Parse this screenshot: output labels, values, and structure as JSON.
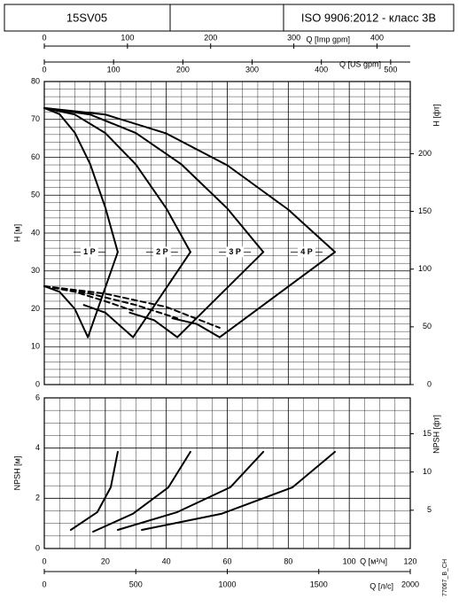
{
  "header": {
    "model": "15SV05",
    "standard": "ISO 9906:2012 - класс 3B"
  },
  "code": "77067_B_CH",
  "chart_data": [
    {
      "type": "line",
      "ylabel": "H [м]",
      "y2label": "H [фт]",
      "xlim": [
        0,
        120
      ],
      "xticks": [
        0,
        20,
        40,
        60,
        80,
        100,
        120
      ],
      "ylim": [
        0,
        80
      ],
      "yticks": [
        0,
        10,
        20,
        30,
        40,
        50,
        60,
        70,
        80
      ],
      "y2lim": [
        0,
        262.5
      ],
      "y2ticks": [
        0,
        50,
        100,
        150,
        200
      ],
      "top_axes": [
        {
          "label": "Q [Imp gpm]",
          "lim": [
            0,
            440
          ],
          "ticks": [
            0,
            100,
            200,
            300,
            400
          ]
        },
        {
          "label": "Q [US gpm]",
          "lim": [
            0,
            528.3
          ],
          "ticks": [
            0,
            100,
            200,
            300,
            400,
            500
          ]
        }
      ],
      "grid": true,
      "color": "#000000",
      "stage_labels": [
        "1 P",
        "2 P",
        "3 P",
        "4 P"
      ],
      "curves": [
        {
          "x": [
            0,
            5,
            10,
            15,
            20,
            24.1
          ],
          "values": [
            73,
            71.4,
            66.5,
            58.3,
            46.8,
            35
          ]
        },
        {
          "x": [
            0,
            10,
            20,
            30,
            40,
            47.9
          ],
          "values": [
            73,
            71.3,
            66.4,
            58.1,
            46.5,
            35
          ]
        },
        {
          "x": [
            0,
            15,
            30,
            45,
            60,
            71.8
          ],
          "values": [
            73,
            71.3,
            66.4,
            58.1,
            46.5,
            35
          ]
        },
        {
          "x": [
            0,
            20,
            40,
            60,
            80,
            95.3
          ],
          "values": [
            73,
            71.3,
            66.3,
            57.9,
            46.2,
            35
          ]
        },
        {
          "x": [
            24.1,
            14.3
          ],
          "values": [
            35,
            12.5
          ]
        },
        {
          "x": [
            47.9,
            29.1
          ],
          "values": [
            35,
            12.5
          ]
        },
        {
          "x": [
            71.8,
            43.6
          ],
          "values": [
            35,
            12.5
          ]
        },
        {
          "x": [
            95.3,
            57.5
          ],
          "values": [
            35,
            12.5
          ]
        },
        {
          "x": [
            0,
            5,
            10,
            14.3
          ],
          "values": [
            26,
            24.5,
            20,
            12.5
          ]
        },
        {
          "x": [
            13,
            20,
            29.1
          ],
          "values": [
            21,
            19,
            12.5
          ]
        },
        {
          "x": [
            28,
            36,
            43.6
          ],
          "values": [
            19,
            17,
            12.5
          ]
        },
        {
          "x": [
            42,
            50,
            57.5
          ],
          "values": [
            17.5,
            16,
            12.5
          ]
        },
        {
          "x": [
            0,
            10,
            20,
            29
          ],
          "values": [
            26,
            24.5,
            22,
            19.5
          ],
          "dashed": true
        },
        {
          "x": [
            0,
            15,
            30,
            43.6
          ],
          "values": [
            26,
            24,
            21,
            17.5
          ],
          "dashed": true
        },
        {
          "x": [
            0,
            20,
            40,
            57.5
          ],
          "values": [
            26,
            24,
            20.5,
            15
          ],
          "dashed": true
        }
      ]
    },
    {
      "type": "line",
      "ylabel": "NPSH [м]",
      "y2label": "NPSH [фт]",
      "xlabel": "Q [м³/ч]",
      "xlim": [
        0,
        120
      ],
      "xticks": [
        0,
        20,
        40,
        60,
        80,
        100,
        120
      ],
      "ylim": [
        0,
        6
      ],
      "yticks": [
        0,
        2,
        4,
        6
      ],
      "y2lim": [
        0,
        19.685
      ],
      "y2ticks": [
        5,
        10,
        15
      ],
      "bottom_axis": {
        "label": "Q [л/с]",
        "lim": [
          0,
          2000
        ],
        "ticks": [
          0,
          500,
          1000,
          1500,
          2000
        ]
      },
      "grid": true,
      "color": "#000000",
      "curves": [
        {
          "x": [
            8.7,
            17.4,
            21.8,
            24.1
          ],
          "values": [
            0.74,
            1.45,
            2.44,
            3.85
          ]
        },
        {
          "x": [
            16,
            29,
            40.7,
            47.9
          ],
          "values": [
            0.67,
            1.38,
            2.44,
            3.85
          ]
        },
        {
          "x": [
            24.1,
            43.6,
            61,
            71.8
          ],
          "values": [
            0.74,
            1.45,
            2.44,
            3.85
          ]
        },
        {
          "x": [
            32,
            58,
            81.4,
            95.3
          ],
          "values": [
            0.74,
            1.38,
            2.44,
            3.85
          ]
        }
      ]
    }
  ]
}
